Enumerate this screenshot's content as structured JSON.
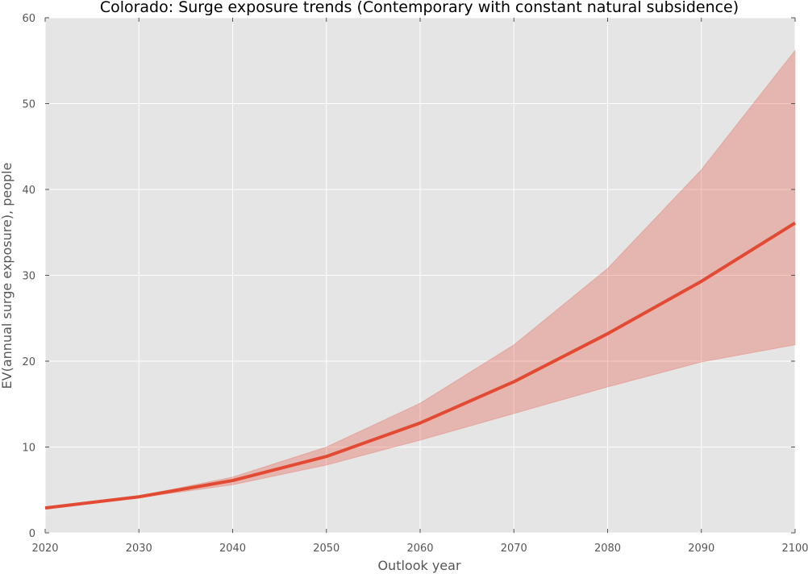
{
  "chart_data": {
    "type": "line",
    "title": "Colorado: Surge exposure trends (Contemporary with constant natural subsidence)",
    "xlabel": "Outlook year",
    "ylabel": "EV(annual surge exposure), people",
    "xlim": [
      2020,
      2100
    ],
    "ylim": [
      0,
      60
    ],
    "x_ticks": [
      2020,
      2030,
      2040,
      2050,
      2060,
      2070,
      2080,
      2090,
      2100
    ],
    "y_ticks": [
      0,
      10,
      20,
      30,
      40,
      50,
      60
    ],
    "grid": true,
    "x": [
      2020,
      2030,
      2040,
      2050,
      2060,
      2070,
      2080,
      2090,
      2100
    ],
    "series": [
      {
        "values": [
          2.9,
          4.2,
          6.1,
          8.9,
          12.8,
          17.6,
          23.2,
          29.3,
          36.1
        ],
        "band_low": [
          2.9,
          4.1,
          5.6,
          7.9,
          10.8,
          13.9,
          17.0,
          19.9,
          21.9
        ],
        "band_high": [
          2.9,
          4.3,
          6.5,
          10.0,
          15.1,
          21.9,
          30.8,
          42.3,
          56.2
        ],
        "color": "#e24a33",
        "band_color": "#e24a33"
      }
    ],
    "colors": {
      "plot_background": "#e5e5e5",
      "grid": "#ffffff",
      "line": "#e24a33",
      "band": "#e24a33"
    }
  }
}
